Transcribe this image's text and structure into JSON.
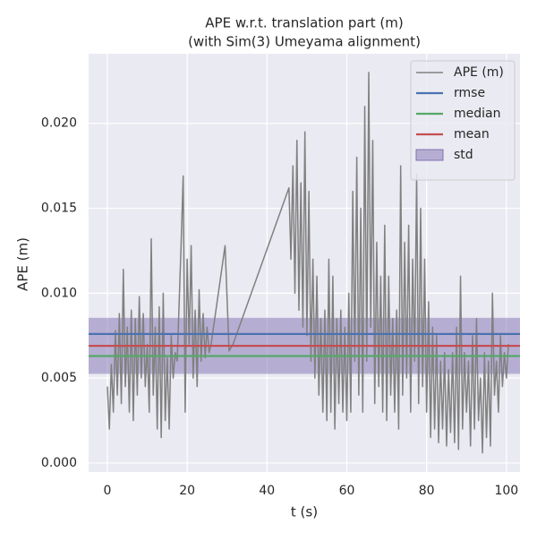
{
  "chart_data": {
    "type": "line",
    "title": "APE w.r.t. translation part (m)",
    "subtitle": "(with Sim(3) Umeyama alignment)",
    "x_label": "t (s)",
    "y_label": "APE (m)",
    "xlim": [
      -4.7,
      103.4
    ],
    "ylim": [
      -0.00053,
      0.0241
    ],
    "xticks": [
      0,
      20,
      40,
      60,
      80,
      100
    ],
    "yticks": [
      {
        "value": 0,
        "label": "0.000"
      },
      {
        "value": 0.005,
        "label": "0.005"
      },
      {
        "value": 0.01,
        "label": "0.010"
      },
      {
        "value": 0.015,
        "label": "0.015"
      },
      {
        "value": 0.02,
        "label": "0.020"
      }
    ],
    "grid": true,
    "legend": "upper right",
    "x": [
      0,
      0.5,
      1,
      1.5,
      2,
      2.5,
      3,
      3.5,
      4,
      4.5,
      5,
      5.5,
      6,
      6.5,
      7,
      7.5,
      8,
      8.5,
      9,
      9.5,
      10,
      10.5,
      11,
      11.5,
      12,
      12.5,
      13,
      13.5,
      14,
      14.5,
      15,
      15.5,
      16,
      16.5,
      17,
      17.5,
      18,
      18.5,
      19,
      19.5,
      20,
      20.5,
      21,
      21.5,
      22,
      22.5,
      23,
      23.5,
      24,
      24.5,
      25,
      25.5,
      26,
      29.5,
      30.5,
      31.5,
      45.5,
      46,
      46.5,
      47,
      47.5,
      48,
      48.5,
      49,
      49.5,
      50,
      50.5,
      51,
      51.5,
      52,
      52.5,
      53,
      53.5,
      54,
      54.5,
      55,
      55.5,
      56,
      56.5,
      57,
      57.5,
      58,
      58.5,
      59,
      59.5,
      60,
      60.5,
      61,
      61.5,
      62,
      62.5,
      63,
      63.5,
      64,
      64.5,
      65,
      65.5,
      66,
      66.5,
      67,
      67.5,
      68,
      68.5,
      69,
      69.5,
      70,
      70.5,
      71,
      71.5,
      72,
      72.5,
      73,
      73.5,
      74,
      74.5,
      75,
      75.5,
      76,
      76.5,
      77,
      77.5,
      78,
      78.5,
      79,
      79.5,
      80,
      80.5,
      81,
      81.5,
      82,
      82.5,
      83,
      83.5,
      84,
      84.5,
      85,
      85.5,
      86,
      86.5,
      87,
      87.5,
      88,
      88.5,
      89,
      89.5,
      90,
      90.5,
      91,
      91.5,
      92,
      92.5,
      93,
      93.5,
      94,
      94.5,
      95,
      95.5,
      96,
      96.5,
      97,
      97.5,
      98,
      98.5,
      99,
      99.5,
      100,
      100.5
    ],
    "series": [
      {
        "name": "APE (m)",
        "color": "#808080",
        "values": [
          0.0045,
          0.002,
          0.0058,
          0.003,
          0.0078,
          0.004,
          0.0088,
          0.0035,
          0.0114,
          0.0045,
          0.008,
          0.003,
          0.009,
          0.0025,
          0.0085,
          0.004,
          0.0098,
          0.005,
          0.0088,
          0.0045,
          0.007,
          0.003,
          0.0132,
          0.004,
          0.008,
          0.002,
          0.0092,
          0.0015,
          0.01,
          0.0025,
          0.0062,
          0.002,
          0.0075,
          0.005,
          0.0065,
          0.006,
          0.0095,
          0.013,
          0.0169,
          0.003,
          0.012,
          0.007,
          0.0128,
          0.005,
          0.009,
          0.0045,
          0.0102,
          0.006,
          0.0088,
          0.0062,
          0.008,
          0.0065,
          0.007,
          0.0128,
          0.0066,
          0.007,
          0.0162,
          0.012,
          0.0175,
          0.01,
          0.019,
          0.009,
          0.0165,
          0.008,
          0.0195,
          0.0075,
          0.016,
          0.006,
          0.012,
          0.005,
          0.011,
          0.004,
          0.0085,
          0.003,
          0.009,
          0.0025,
          0.012,
          0.003,
          0.011,
          0.002,
          0.0085,
          0.0035,
          0.009,
          0.003,
          0.008,
          0.0025,
          0.01,
          0.003,
          0.016,
          0.006,
          0.018,
          0.004,
          0.015,
          0.003,
          0.021,
          0.006,
          0.023,
          0.008,
          0.019,
          0.0035,
          0.013,
          0.0045,
          0.011,
          0.003,
          0.014,
          0.0025,
          0.011,
          0.004,
          0.0085,
          0.003,
          0.009,
          0.002,
          0.0175,
          0.004,
          0.013,
          0.005,
          0.014,
          0.003,
          0.012,
          0.006,
          0.017,
          0.0035,
          0.015,
          0.0045,
          0.012,
          0.003,
          0.0095,
          0.0015,
          0.008,
          0.002,
          0.0075,
          0.0012,
          0.006,
          0.002,
          0.0065,
          0.001,
          0.0055,
          0.0018,
          0.0065,
          0.0012,
          0.008,
          0.0008,
          0.011,
          0.002,
          0.0065,
          0.003,
          0.006,
          0.001,
          0.0075,
          0.002,
          0.0085,
          0.0025,
          0.005,
          0.0006,
          0.0065,
          0.0015,
          0.006,
          0.001,
          0.01,
          0.004,
          0.006,
          0.003,
          0.0075,
          0.0045,
          0.0065,
          0.005,
          0.007
        ]
      }
    ],
    "stats": [
      {
        "name": "rmse",
        "color": "#4c72b0",
        "value": 0.0076
      },
      {
        "name": "median",
        "color": "#55a868",
        "value": 0.0063
      },
      {
        "name": "mean",
        "color": "#c44e52",
        "value": 0.0069
      }
    ],
    "std": {
      "name": "std",
      "color": "#8172b2",
      "value": 0.00165
    }
  }
}
